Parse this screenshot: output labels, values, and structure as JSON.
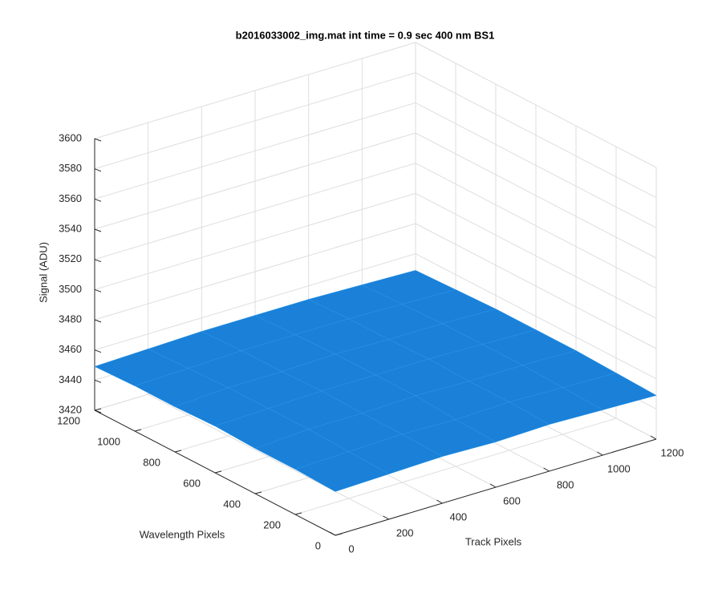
{
  "chart_data": {
    "type": "surface",
    "title": "b2016033002_img.mat int time = 0.9 sec  400 nm BS1",
    "xlabel": "Track Pixels",
    "ylabel": "Wavelength Pixels",
    "zlabel": "Signal (ADU)",
    "xlim": [
      0,
      1200
    ],
    "ylim": [
      0,
      1200
    ],
    "zlim": [
      3420,
      3600
    ],
    "xticks": [
      0,
      200,
      400,
      600,
      800,
      1000,
      1200
    ],
    "yticks": [
      0,
      200,
      400,
      600,
      800,
      1000,
      1200
    ],
    "zticks": [
      3420,
      3440,
      3460,
      3480,
      3500,
      3520,
      3540,
      3560,
      3580,
      3600
    ],
    "grid": true,
    "color": "#1a80d8",
    "x": [
      0,
      200,
      400,
      600,
      800,
      1000,
      1200
    ],
    "y": [
      0,
      200,
      400,
      600,
      800,
      1000,
      1200
    ],
    "z": [
      [
        3449,
        3450,
        3451,
        3450,
        3451,
        3450,
        3449
      ],
      [
        3450,
        3451,
        3452,
        3451,
        3452,
        3451,
        3450
      ],
      [
        3450,
        3452,
        3452,
        3453,
        3452,
        3452,
        3451
      ],
      [
        3451,
        3452,
        3453,
        3453,
        3453,
        3452,
        3451
      ],
      [
        3450,
        3452,
        3452,
        3453,
        3452,
        3452,
        3451
      ],
      [
        3450,
        3451,
        3452,
        3452,
        3452,
        3451,
        3450
      ],
      [
        3449,
        3450,
        3451,
        3451,
        3451,
        3450,
        3449
      ]
    ]
  }
}
